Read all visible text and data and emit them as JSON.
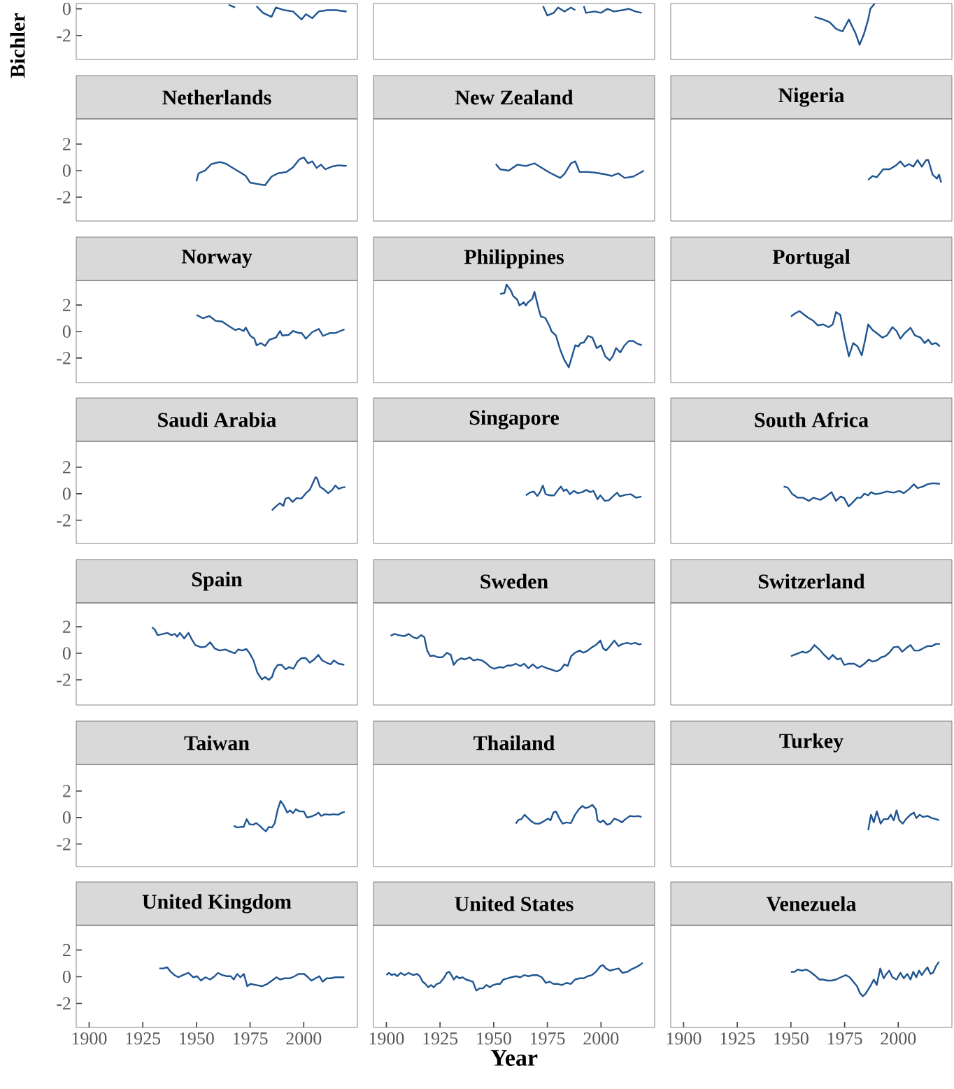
{
  "chart_data": [
    {
      "type": "line",
      "ylabel": "Bichler",
      "color": "#1f5591",
      "xlim": [
        1894,
        2025
      ],
      "ylim": [
        -3.8,
        0.4
      ],
      "xticks": [
        1900,
        1925,
        1950,
        1975,
        2000
      ],
      "yticks": [
        -2,
        0
      ],
      "tick_labels": "y",
      "x": [
        1965,
        1968,
        1970,
        1978,
        1981,
        1985,
        1987,
        1991,
        1995,
        1999,
        2001,
        2004,
        2007,
        2011,
        2015,
        2020
      ],
      "values": [
        0.3,
        0.1,
        null,
        0.2,
        -0.3,
        -0.6,
        0.1,
        -0.1,
        -0.2,
        -0.8,
        -0.4,
        -0.7,
        -0.2,
        -0.1,
        -0.1,
        -0.2
      ]
    },
    {
      "type": "line",
      "color": "#1f5591",
      "xlim": [
        1894,
        2025
      ],
      "ylim": [
        -3.8,
        0.4
      ],
      "xticks": [
        1900,
        1925,
        1950,
        1975,
        2000
      ],
      "yticks": [
        -2,
        0
      ],
      "tick_labels": false,
      "x": [
        1973,
        1975,
        1978,
        1980,
        1983,
        1986,
        1988,
        1990,
        1992,
        1993,
        1997,
        2000,
        2003,
        2006,
        2010,
        2013,
        2016,
        2019
      ],
      "values": [
        0.2,
        -0.5,
        -0.3,
        0.1,
        -0.2,
        0.1,
        -0.1,
        null,
        0.2,
        -0.3,
        -0.2,
        -0.3,
        0,
        -0.2,
        -0.1,
        0,
        -0.2,
        -0.3
      ]
    },
    {
      "type": "line",
      "color": "#1f5591",
      "xlim": [
        1894,
        2025
      ],
      "ylim": [
        -3.8,
        0.4
      ],
      "xticks": [
        1900,
        1925,
        1950,
        1975,
        2000
      ],
      "yticks": [
        -2,
        0
      ],
      "tick_labels": false,
      "x": [
        1961,
        1965,
        1968,
        1971,
        1974,
        1977,
        1980,
        1982,
        1984,
        1986,
        1987,
        1989
      ],
      "values": [
        -0.6,
        -0.8,
        -1.0,
        -1.5,
        -1.7,
        -0.8,
        -1.8,
        -2.7,
        -1.9,
        -0.8,
        0,
        0.4
      ]
    },
    {
      "type": "line",
      "title": "Netherlands",
      "color": "#1f5591",
      "xlim": [
        1894,
        2025
      ],
      "ylim": [
        -3.8,
        3.9
      ],
      "xticks": [
        1900,
        1925,
        1950,
        1975,
        2000
      ],
      "yticks": [
        -2,
        0,
        2
      ],
      "tick_labels": "y",
      "x": [
        1950,
        1951,
        1954,
        1957,
        1961,
        1964,
        1967,
        1970,
        1973,
        1975,
        1978,
        1982,
        1985,
        1988,
        1992,
        1995,
        1998,
        2000,
        2002,
        2004,
        2006,
        2008,
        2010,
        2013,
        2016,
        2020
      ],
      "values": [
        -0.8,
        -0.2,
        0,
        0.5,
        0.65,
        0.5,
        0.2,
        -0.1,
        -0.4,
        -0.9,
        -1.0,
        -1.1,
        -0.45,
        -0.2,
        -0.1,
        0.25,
        0.85,
        1.0,
        0.55,
        0.7,
        0.2,
        0.45,
        0.1,
        0.3,
        0.4,
        0.35
      ]
    },
    {
      "type": "line",
      "title": "New Zealand",
      "color": "#1f5591",
      "xlim": [
        1894,
        2025
      ],
      "ylim": [
        -3.8,
        3.9
      ],
      "xticks": [
        1900,
        1925,
        1950,
        1975,
        2000
      ],
      "yticks": [
        -2,
        0,
        2
      ],
      "tick_labels": false,
      "x": [
        1951,
        1953,
        1957,
        1961,
        1965,
        1969,
        1972,
        1976,
        1981,
        1983,
        1986,
        1988,
        1990,
        1994,
        1997,
        2001,
        2005,
        2008,
        2011,
        2015,
        2020
      ],
      "values": [
        0.5,
        0.1,
        0,
        0.45,
        0.35,
        0.55,
        0.25,
        -0.15,
        -0.55,
        -0.25,
        0.55,
        0.7,
        -0.1,
        -0.1,
        -0.15,
        -0.25,
        -0.4,
        -0.2,
        -0.55,
        -0.45,
        0
      ]
    },
    {
      "type": "line",
      "title": "Nigeria",
      "color": "#1f5591",
      "xlim": [
        1894,
        2025
      ],
      "ylim": [
        -3.8,
        3.9
      ],
      "xticks": [
        1900,
        1925,
        1950,
        1975,
        2000
      ],
      "yticks": [
        -2,
        0,
        2
      ],
      "tick_labels": false,
      "x": [
        1986,
        1988,
        1990,
        1993,
        1996,
        1999,
        2001,
        2003,
        2005,
        2007,
        2009,
        2011,
        2013,
        2014,
        2016,
        2018,
        2019,
        2020
      ],
      "values": [
        -0.7,
        -0.4,
        -0.5,
        0.1,
        0.1,
        0.4,
        0.7,
        0.3,
        0.5,
        0.3,
        0.8,
        0.3,
        0.8,
        0.8,
        -0.3,
        -0.6,
        -0.3,
        -0.9
      ]
    },
    {
      "type": "line",
      "title": "Norway",
      "color": "#1f5591",
      "xlim": [
        1894,
        2025
      ],
      "ylim": [
        -3.85,
        3.85
      ],
      "xticks": [
        1900,
        1925,
        1950,
        1975,
        2000
      ],
      "yticks": [
        -2,
        0,
        2
      ],
      "tick_labels": "y",
      "x": [
        1950,
        1953,
        1956,
        1959,
        1962,
        1965,
        1968,
        1970,
        1972,
        1973,
        1975,
        1977,
        1978,
        1980,
        1982,
        1984,
        1987,
        1989,
        1990,
        1993,
        1995,
        1998,
        1999,
        2001,
        2004,
        2007,
        2009,
        2012,
        2015,
        2017,
        2019
      ],
      "values": [
        1.25,
        1.0,
        1.17,
        0.8,
        0.75,
        0.42,
        0.12,
        0.2,
        0.04,
        0.3,
        -0.3,
        -0.54,
        -1.04,
        -0.87,
        -1.08,
        -0.62,
        -0.46,
        0.04,
        -0.3,
        -0.25,
        0.04,
        -0.12,
        -0.1,
        -0.54,
        -0.04,
        0.2,
        -0.33,
        -0.12,
        -0.1,
        0.04,
        0.17
      ]
    },
    {
      "type": "line",
      "title": "Philippines",
      "color": "#1f5591",
      "xlim": [
        1894,
        2025
      ],
      "ylim": [
        -3.85,
        3.85
      ],
      "xticks": [
        1900,
        1925,
        1950,
        1975,
        2000
      ],
      "yticks": [
        -2,
        0,
        2
      ],
      "tick_labels": false,
      "x": [
        1953,
        1955,
        1956,
        1958,
        1959,
        1961,
        1962,
        1964,
        1965,
        1966,
        1968,
        1969,
        1971,
        1972,
        1974,
        1976,
        1977,
        1979,
        1981,
        1983,
        1985,
        1986.5,
        1988,
        1989.5,
        1990.5,
        1992,
        1994,
        1996,
        1998,
        2000,
        2002,
        2004,
        2005.5,
        2007,
        2009,
        2011,
        2013,
        2015,
        2017,
        2019
      ],
      "values": [
        2.83,
        2.9,
        3.54,
        3.1,
        2.7,
        2.4,
        1.96,
        2.2,
        1.96,
        2.2,
        2.46,
        3.0,
        1.67,
        1.13,
        1.04,
        0.42,
        0,
        -0.3,
        -1.37,
        -2.17,
        -2.7,
        -1.87,
        -1.04,
        -1.12,
        -0.87,
        -0.83,
        -0.33,
        -0.46,
        -1.25,
        -1.04,
        -1.87,
        -2.17,
        -1.87,
        -1.25,
        -1.58,
        -1.04,
        -0.71,
        -0.71,
        -0.92,
        -1.04
      ]
    },
    {
      "type": "line",
      "title": "Portugal",
      "color": "#1f5591",
      "xlim": [
        1894,
        2025
      ],
      "ylim": [
        -3.85,
        3.85
      ],
      "xticks": [
        1900,
        1925,
        1950,
        1975,
        2000
      ],
      "yticks": [
        -2,
        0,
        2
      ],
      "tick_labels": false,
      "x": [
        1950,
        1952,
        1954,
        1956,
        1958,
        1960.5,
        1962.5,
        1965,
        1967.5,
        1969.5,
        1971,
        1973,
        1975,
        1977,
        1979,
        1981,
        1983,
        1984.7,
        1986,
        1988,
        1990,
        1992.6,
        1994.7,
        1997.3,
        1999.2,
        2001,
        2003,
        2005.7,
        2007.8,
        2010.4,
        2012.3,
        2014,
        2015.6,
        2017.6,
        2019.4
      ],
      "values": [
        1.13,
        1.37,
        1.54,
        1.29,
        1.04,
        0.8,
        0.46,
        0.54,
        0.33,
        0.54,
        1.46,
        1.25,
        -0.42,
        -1.87,
        -0.87,
        -1.12,
        -1.79,
        -0.54,
        0.54,
        0.12,
        -0.12,
        -0.46,
        -0.3,
        0.33,
        0.04,
        -0.54,
        -0.12,
        0.29,
        -0.3,
        -0.46,
        -0.87,
        -0.62,
        -0.96,
        -0.87,
        -1.12
      ]
    },
    {
      "type": "line",
      "title": "Saudi Arabia",
      "color": "#1f5591",
      "xlim": [
        1894,
        2025
      ],
      "ylim": [
        -3.75,
        3.95
      ],
      "xticks": [
        1900,
        1925,
        1950,
        1975,
        2000
      ],
      "yticks": [
        -2,
        0,
        2
      ],
      "tick_labels": "y",
      "x": [
        1985.2,
        1987,
        1988.9,
        1990.5,
        1991.5,
        1993,
        1994.8,
        1996.7,
        1998.9,
        2001,
        2002.8,
        2004,
        2005.5,
        2006.2,
        2007.5,
        2009.4,
        2011.4,
        2013.3,
        2014.7,
        2016.3,
        2017.8,
        2019.4
      ],
      "values": [
        -1.25,
        -0.96,
        -0.71,
        -0.92,
        -0.37,
        -0.3,
        -0.62,
        -0.33,
        -0.37,
        0.04,
        0.29,
        0.71,
        1.25,
        1.17,
        0.54,
        0.33,
        0.04,
        0.29,
        0.62,
        0.37,
        0.46,
        0.5
      ]
    },
    {
      "type": "line",
      "title": "Singapore",
      "color": "#1f5591",
      "xlim": [
        1894,
        2025
      ],
      "ylim": [
        -3.75,
        3.95
      ],
      "xticks": [
        1900,
        1925,
        1950,
        1975,
        2000
      ],
      "yticks": [
        -2,
        0,
        2
      ],
      "tick_labels": false,
      "x": [
        1965,
        1966.8,
        1968.7,
        1970.3,
        1971.6,
        1972.9,
        1974.2,
        1976,
        1978.2,
        1980,
        1981.3,
        1982.6,
        1983.9,
        1985.5,
        1987.3,
        1989.2,
        1991.3,
        1993.2,
        1995,
        1996.5,
        1998.4,
        1999.7,
        2001.8,
        2003.6,
        2005.5,
        2007.5,
        2008.8,
        2011.4,
        2014,
        2016.3,
        2018.9
      ],
      "values": [
        -0.12,
        0.08,
        0.17,
        -0.17,
        0.12,
        0.62,
        -0.04,
        -0.12,
        -0.12,
        0.29,
        0.54,
        0.21,
        0.33,
        -0.04,
        0.21,
        0.04,
        0.12,
        0.29,
        0.12,
        0.21,
        -0.42,
        -0.12,
        -0.54,
        -0.5,
        -0.21,
        0.08,
        -0.21,
        -0.08,
        -0.04,
        -0.3,
        -0.21
      ]
    },
    {
      "type": "line",
      "title": "South Africa",
      "color": "#1f5591",
      "xlim": [
        1894,
        2025
      ],
      "ylim": [
        -3.75,
        3.95
      ],
      "xticks": [
        1900,
        1925,
        1950,
        1975,
        2000
      ],
      "yticks": [
        -2,
        0,
        2
      ],
      "tick_labels": false,
      "x": [
        1946.6,
        1948.5,
        1950.5,
        1953.1,
        1955.7,
        1958.3,
        1960.5,
        1963.7,
        1966.3,
        1968.9,
        1971,
        1973.2,
        1974.8,
        1976.9,
        1979,
        1980.8,
        1982.6,
        1984.2,
        1986,
        1987.3,
        1989.4,
        1992,
        1994.7,
        1997.8,
        2000.5,
        2002.6,
        2005.2,
        2007.3,
        2009,
        2011.5,
        2013.6,
        2016.2,
        2019.4
      ],
      "values": [
        0.54,
        0.46,
        0,
        -0.3,
        -0.3,
        -0.54,
        -0.3,
        -0.46,
        -0.21,
        0.12,
        -0.54,
        -0.21,
        -0.33,
        -0.96,
        -0.62,
        -0.3,
        -0.3,
        0,
        -0.12,
        0.12,
        -0.04,
        0.04,
        0.17,
        0.08,
        0.21,
        0.04,
        0.37,
        0.71,
        0.42,
        0.54,
        0.71,
        0.79,
        0.75
      ]
    },
    {
      "type": "line",
      "title": "Spain",
      "color": "#1f5591",
      "xlim": [
        1894,
        2025
      ],
      "ylim": [
        -3.9,
        3.8
      ],
      "xticks": [
        1900,
        1925,
        1950,
        1975,
        2000
      ],
      "yticks": [
        -2,
        0,
        2
      ],
      "tick_labels": "y",
      "x": [
        1929.3,
        1930.6,
        1931.9,
        1934.5,
        1936.4,
        1938.4,
        1940,
        1941,
        1942.3,
        1944.3,
        1946.3,
        1947.6,
        1949.5,
        1952.1,
        1954.2,
        1956.4,
        1958.5,
        1960.8,
        1963.4,
        1966,
        1967.9,
        1969.5,
        1971.3,
        1973.2,
        1974.8,
        1976.6,
        1978.4,
        1980.5,
        1982,
        1983.7,
        1985.2,
        1986.3,
        1987.9,
        1989.7,
        1991.5,
        1993.2,
        1995.2,
        1997.1,
        1998.9,
        2001,
        2002.8,
        2004.9,
        2006.8,
        2008.6,
        2010.7,
        2012.6,
        2014,
        2016.3,
        2018.9
      ],
      "values": [
        1.96,
        1.79,
        1.37,
        1.46,
        1.54,
        1.37,
        1.46,
        1.25,
        1.54,
        1.12,
        1.54,
        1.12,
        0.62,
        0.46,
        0.5,
        0.83,
        0.37,
        0.21,
        0.29,
        0.12,
        0,
        0.29,
        0.21,
        0.33,
        0,
        -0.54,
        -1.46,
        -1.96,
        -1.79,
        -2.0,
        -1.79,
        -1.25,
        -0.87,
        -0.87,
        -1.21,
        -1.04,
        -1.17,
        -0.62,
        -0.37,
        -0.37,
        -0.71,
        -0.46,
        -0.12,
        -0.54,
        -0.71,
        -0.83,
        -0.54,
        -0.79,
        -0.87
      ]
    },
    {
      "type": "line",
      "title": "Sweden",
      "color": "#1f5591",
      "xlim": [
        1894,
        2025
      ],
      "ylim": [
        -3.9,
        3.8
      ],
      "xticks": [
        1900,
        1925,
        1950,
        1975,
        2000
      ],
      "yticks": [
        -2,
        0,
        2
      ],
      "tick_labels": false,
      "x": [
        1902,
        1903.8,
        1905.7,
        1908.3,
        1910.4,
        1912.5,
        1914.3,
        1916.2,
        1917.7,
        1919,
        1920.4,
        1922.1,
        1924,
        1926.1,
        1928.2,
        1930,
        1931.4,
        1933,
        1934.9,
        1936.6,
        1938.8,
        1940.6,
        1942.5,
        1944.6,
        1946.8,
        1948.5,
        1950.3,
        1952.5,
        1954.5,
        1956.4,
        1958.2,
        1960.3,
        1962.4,
        1964.2,
        1966.2,
        1968.2,
        1970.3,
        1972.4,
        1974.8,
        1977.4,
        1979.5,
        1981.3,
        1983,
        1984.5,
        1986.1,
        1987.9,
        1990,
        1991.9,
        1993.8,
        1995.8,
        1997.6,
        1999.7,
        2001,
        2002.3,
        2004.2,
        2006.2,
        2008.2,
        2010,
        2012.3,
        2014,
        2016,
        2017.6,
        2018.9
      ],
      "values": [
        1.33,
        1.46,
        1.37,
        1.29,
        1.46,
        1.21,
        1.12,
        1.37,
        1.21,
        0.21,
        -0.21,
        -0.17,
        -0.3,
        -0.3,
        0.04,
        -0.12,
        -0.87,
        -0.54,
        -0.37,
        -0.46,
        -0.3,
        -0.54,
        -0.46,
        -0.54,
        -0.79,
        -1.04,
        -1.17,
        -1.04,
        -1.08,
        -0.92,
        -0.92,
        -0.79,
        -0.96,
        -0.79,
        -1.12,
        -0.83,
        -1.12,
        -0.96,
        -1.12,
        -1.25,
        -1.37,
        -1.21,
        -0.83,
        -0.96,
        -0.21,
        0.04,
        0.21,
        0.04,
        0.21,
        0.46,
        0.62,
        0.96,
        0.37,
        0.21,
        0.54,
        0.96,
        0.54,
        0.71,
        0.79,
        0.71,
        0.79,
        0.67,
        0.71
      ]
    },
    {
      "type": "line",
      "title": "Switzerland",
      "color": "#1f5591",
      "xlim": [
        1894,
        2025
      ],
      "ylim": [
        -3.9,
        3.8
      ],
      "xticks": [
        1900,
        1925,
        1950,
        1975,
        2000
      ],
      "yticks": [
        -2,
        0,
        2
      ],
      "tick_labels": false,
      "x": [
        1950,
        1952.7,
        1955.3,
        1957.2,
        1959,
        1961,
        1963.2,
        1965,
        1967.7,
        1969.5,
        1971.6,
        1973.2,
        1974.8,
        1976.9,
        1979.5,
        1982.1,
        1984.2,
        1986.3,
        1987.9,
        1990,
        1992.1,
        1993.9,
        1995.8,
        1997.9,
        2000,
        2001.8,
        2003.6,
        2005.7,
        2007.5,
        2009.7,
        2011.5,
        2013.6,
        2015.6,
        2017.6,
        2019.4
      ],
      "values": [
        -0.21,
        -0.04,
        0.12,
        0.04,
        0.21,
        0.62,
        0.29,
        -0.04,
        -0.46,
        -0.12,
        -0.46,
        -0.37,
        -0.87,
        -0.79,
        -0.79,
        -1.04,
        -0.79,
        -0.46,
        -0.62,
        -0.54,
        -0.3,
        -0.21,
        0.04,
        0.46,
        0.5,
        0.12,
        0.37,
        0.62,
        0.21,
        0.21,
        0.37,
        0.54,
        0.54,
        0.71,
        0.71
      ]
    },
    {
      "type": "line",
      "title": "Taiwan",
      "color": "#1f5591",
      "xlim": [
        1894,
        2025
      ],
      "ylim": [
        -3.7,
        4.0
      ],
      "xticks": [
        1900,
        1925,
        1950,
        1975,
        2000
      ],
      "yticks": [
        -2,
        0,
        2
      ],
      "tick_labels": "y",
      "x": [
        1967.4,
        1969,
        1970.5,
        1972,
        1973.4,
        1974.7,
        1976.6,
        1977.8,
        1979.5,
        1981,
        1982.4,
        1983.7,
        1985.2,
        1986.5,
        1987.9,
        1989.2,
        1990.5,
        1992.3,
        1993.6,
        1995,
        1996.3,
        1998,
        2000,
        2001.5,
        2003.6,
        2005.5,
        2006.8,
        2008.1,
        2009.9,
        2012,
        2014.1,
        2016,
        2017.8,
        2019.1
      ],
      "values": [
        -0.62,
        -0.75,
        -0.71,
        -0.71,
        -0.12,
        -0.5,
        -0.54,
        -0.42,
        -0.62,
        -0.87,
        -1.04,
        -0.71,
        -0.75,
        -0.42,
        0.62,
        1.25,
        0.96,
        0.37,
        0.54,
        0.33,
        0.62,
        0.46,
        0.46,
        0,
        0.08,
        0.21,
        0.37,
        0.12,
        0.25,
        0.21,
        0.25,
        0.21,
        0.37,
        0.42
      ]
    },
    {
      "type": "line",
      "title": "Thailand",
      "color": "#1f5591",
      "xlim": [
        1894,
        2025
      ],
      "ylim": [
        -3.7,
        4.0
      ],
      "xticks": [
        1900,
        1925,
        1950,
        1975,
        2000
      ],
      "yticks": [
        -2,
        0,
        2
      ],
      "tick_labels": false,
      "x": [
        1960.3,
        1961.6,
        1962.9,
        1964.4,
        1966,
        1967.6,
        1969.4,
        1971.3,
        1973.3,
        1975.2,
        1976.5,
        1977.8,
        1979,
        1980.8,
        1982.1,
        1983.9,
        1986,
        1987.9,
        1989.7,
        1991.3,
        1992.8,
        1994.4,
        1996,
        1997.6,
        1998.4,
        1999.7,
        2001,
        2002.8,
        2004.4,
        2006.2,
        2008.2,
        2009.7,
        2011.4,
        2013.6,
        2015.5,
        2017.3,
        2018.9
      ],
      "values": [
        -0.46,
        -0.17,
        -0.12,
        0.21,
        -0.04,
        -0.29,
        -0.46,
        -0.46,
        -0.29,
        -0.08,
        -0.21,
        0.37,
        0.46,
        -0.12,
        -0.46,
        -0.37,
        -0.42,
        0.21,
        0.62,
        0.87,
        0.71,
        0.79,
        0.96,
        0.62,
        -0.21,
        -0.37,
        -0.21,
        -0.54,
        -0.46,
        -0.08,
        -0.21,
        -0.37,
        -0.12,
        0.12,
        0.08,
        0.12,
        0.04
      ]
    },
    {
      "type": "line",
      "title": "Turkey",
      "color": "#1f5591",
      "xlim": [
        1894,
        2025
      ],
      "ylim": [
        -3.7,
        4.0
      ],
      "xticks": [
        1900,
        1925,
        1950,
        1975,
        2000
      ],
      "yticks": [
        -2,
        0,
        2
      ],
      "tick_labels": false,
      "x": [
        1986,
        1987.3,
        1988.6,
        1990,
        1991.8,
        1993.2,
        1995.2,
        1996.5,
        1997.9,
        1999.2,
        2000.5,
        2002.1,
        2003.6,
        2005.7,
        2007.3,
        2008.4,
        2010,
        2011.5,
        2013.6,
        2015.6,
        2017.6,
        2019
      ],
      "values": [
        -0.96,
        0.21,
        -0.37,
        0.46,
        -0.46,
        -0.12,
        -0.12,
        0.21,
        -0.21,
        0.54,
        -0.21,
        -0.46,
        -0.12,
        0.21,
        0.37,
        -0.04,
        0.21,
        0.04,
        0.12,
        -0.04,
        -0.12,
        -0.21
      ]
    },
    {
      "type": "line",
      "title": "United Kingdom",
      "color": "#1f5591",
      "xlim": [
        1894,
        2025
      ],
      "ylim": [
        -3.8,
        3.85
      ],
      "xticks": [
        1900,
        1925,
        1950,
        1975,
        2000
      ],
      "yticks": [
        -2,
        0,
        2
      ],
      "x": [
        1932.7,
        1934.5,
        1936.4,
        1938,
        1939.8,
        1941.6,
        1943.7,
        1946.3,
        1948.5,
        1950.3,
        1952.1,
        1954.2,
        1956.4,
        1958.5,
        1960,
        1962.1,
        1964.2,
        1966,
        1967.4,
        1969,
        1970.5,
        1972.1,
        1973.7,
        1975.2,
        1977.8,
        1980.5,
        1983,
        1985.2,
        1987.3,
        1989,
        1991,
        1993.6,
        1995.8,
        1997.6,
        2000.2,
        2002,
        2003.6,
        2005.5,
        2007.3,
        2008.8,
        2010.7,
        2012.6,
        2014.7,
        2016.8,
        2018.9
      ],
      "values": [
        0.62,
        0.62,
        0.71,
        0.37,
        0.12,
        -0.04,
        0.12,
        0.29,
        -0.04,
        0.04,
        -0.29,
        -0.04,
        -0.21,
        0.04,
        0.29,
        0.12,
        0.04,
        0.04,
        -0.21,
        0.21,
        -0.04,
        0.21,
        -0.71,
        -0.54,
        -0.62,
        -0.71,
        -0.54,
        -0.29,
        -0.04,
        -0.21,
        -0.12,
        -0.12,
        0.04,
        0.21,
        0.21,
        -0.04,
        -0.29,
        -0.12,
        0.04,
        -0.37,
        -0.12,
        -0.12,
        -0.04,
        -0.04,
        -0.04
      ]
    },
    {
      "type": "line",
      "title": "United States",
      "xlabel": "Year",
      "color": "#1f5591",
      "xlim": [
        1894,
        2025
      ],
      "ylim": [
        -3.8,
        3.85
      ],
      "xticks": [
        1900,
        1925,
        1950,
        1975,
        2000
      ],
      "yticks": [
        -2,
        0,
        2
      ],
      "tick_labels": "x",
      "x": [
        1900,
        1901.2,
        1902.5,
        1903.8,
        1905.1,
        1906.7,
        1908.5,
        1910.4,
        1912.5,
        1914.3,
        1915.6,
        1916.9,
        1918.2,
        1919.5,
        1920.8,
        1922.1,
        1923.5,
        1925,
        1926.7,
        1928.2,
        1929.3,
        1930.3,
        1931.4,
        1932.7,
        1934,
        1935.5,
        1937.1,
        1938.8,
        1940.3,
        1941.9,
        1943.5,
        1945,
        1946.6,
        1948.2,
        1949.8,
        1951.4,
        1953,
        1954.5,
        1956.4,
        1958.2,
        1960.3,
        1962.4,
        1964.2,
        1966.2,
        1968.2,
        1970.3,
        1972.4,
        1974.3,
        1976,
        1977.9,
        1980,
        1981.8,
        1983.9,
        1986,
        1987.9,
        1990,
        1991.9,
        1993.8,
        1995.8,
        1997.6,
        1999.7,
        2001,
        2002.3,
        2004.2,
        2006.2,
        2008.2,
        2010,
        2012.3,
        2014,
        2016.3,
        2018,
        2019.4
      ],
      "values": [
        0.12,
        0.29,
        0.12,
        0.21,
        0.04,
        0.29,
        0.12,
        0.29,
        0.12,
        0.21,
        0.04,
        -0.37,
        -0.54,
        -0.79,
        -0.62,
        -0.79,
        -0.54,
        -0.46,
        -0.12,
        0.29,
        0.37,
        0.12,
        -0.21,
        0.04,
        -0.12,
        -0.04,
        -0.21,
        -0.29,
        -0.37,
        -1.04,
        -0.87,
        -0.87,
        -0.62,
        -0.79,
        -0.62,
        -0.54,
        -0.54,
        -0.21,
        -0.12,
        -0.04,
        0.04,
        -0.04,
        0.12,
        0.04,
        0.12,
        0.12,
        -0.04,
        -0.46,
        -0.37,
        -0.54,
        -0.54,
        -0.62,
        -0.46,
        -0.54,
        -0.21,
        -0.12,
        -0.12,
        0.04,
        0.12,
        0.37,
        0.79,
        0.87,
        0.62,
        0.46,
        0.54,
        0.62,
        0.29,
        0.37,
        0.54,
        0.71,
        0.87,
        1.04
      ]
    },
    {
      "type": "line",
      "title": "Venezuela",
      "color": "#1f5591",
      "xlim": [
        1894,
        2025
      ],
      "ylim": [
        -3.8,
        3.85
      ],
      "xticks": [
        1900,
        1925,
        1950,
        1975,
        2000
      ],
      "yticks": [
        -2,
        0,
        2
      ],
      "tick_labels": "x",
      "x": [
        1950,
        1951.8,
        1953.1,
        1955.3,
        1957.2,
        1959,
        1961,
        1963.2,
        1965,
        1966.9,
        1968.9,
        1971,
        1973.2,
        1975.6,
        1977.4,
        1979,
        1980.8,
        1982.1,
        1983.5,
        1984.7,
        1986,
        1987.3,
        1988.6,
        1990,
        1991.6,
        1993.2,
        1994.5,
        1995.8,
        1997.3,
        1999.2,
        2001,
        2002.6,
        2004.2,
        2005.7,
        2007,
        2008.4,
        2009.7,
        2011,
        2012.4,
        2013.6,
        2015,
        2016.2,
        2017.6,
        2019
      ],
      "values": [
        0.37,
        0.37,
        0.54,
        0.46,
        0.54,
        0.37,
        0.12,
        -0.21,
        -0.21,
        -0.29,
        -0.29,
        -0.21,
        -0.04,
        0.12,
        -0.04,
        -0.37,
        -0.71,
        -1.21,
        -1.46,
        -1.29,
        -0.96,
        -0.62,
        -0.21,
        -0.62,
        0.62,
        -0.12,
        0.21,
        0.46,
        -0.04,
        -0.21,
        0.29,
        -0.12,
        0.21,
        -0.21,
        0.37,
        -0.04,
        0.46,
        0.12,
        0.46,
        0.71,
        0.21,
        0.29,
        0.79,
        1.12
      ]
    }
  ]
}
